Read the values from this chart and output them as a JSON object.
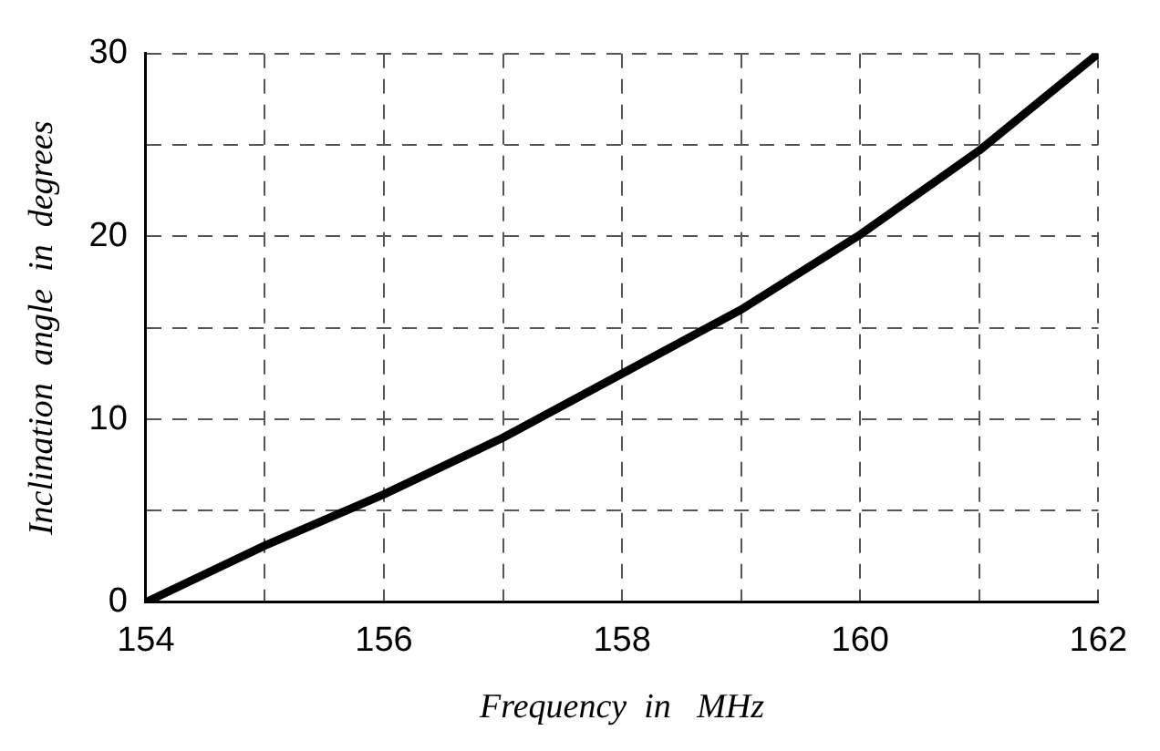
{
  "chart_data": {
    "type": "line",
    "xlabel": "Frequency  in   MHz",
    "ylabel": "Inclination  angle  in  degrees",
    "x": [
      154,
      155,
      156,
      157,
      158,
      159,
      160,
      161,
      162
    ],
    "series": [
      {
        "color": "#000000",
        "values": [
          0,
          3.1,
          5.9,
          9.0,
          12.5,
          16.0,
          20.1,
          24.7,
          30
        ]
      }
    ],
    "xlim": [
      154,
      162
    ],
    "xticks": [
      154,
      {
        "value": 155,
        "label": null
      },
      156,
      {
        "value": 157,
        "label": null
      },
      158,
      {
        "value": 159,
        "label": null
      },
      160,
      {
        "value": 161,
        "label": null
      },
      162
    ],
    "ylim": [
      0,
      30
    ],
    "yticks": [
      0,
      {
        "value": 5,
        "label": null
      },
      10,
      {
        "value": 15,
        "label": null
      },
      20,
      {
        "value": 25,
        "label": null
      },
      30
    ],
    "grid": true,
    "legend": false,
    "marker": "none",
    "line_style": "solid"
  }
}
